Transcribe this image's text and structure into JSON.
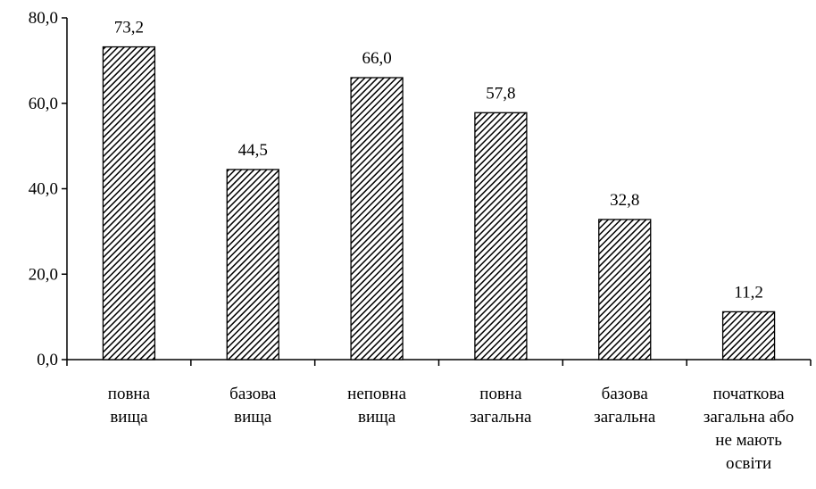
{
  "chart_data": {
    "type": "bar",
    "title": "",
    "xlabel": "",
    "ylabel": "",
    "ylim": [
      0,
      80
    ],
    "yticks": [
      "0,0",
      "20,0",
      "40,0",
      "60,0",
      "80,0"
    ],
    "grid": false,
    "legend": "none",
    "categories": [
      [
        "повна",
        "вища"
      ],
      [
        "базова",
        "вища"
      ],
      [
        "неповна",
        "вища"
      ],
      [
        "повна",
        "загальна"
      ],
      [
        "базова",
        "загальна"
      ],
      [
        "початкова",
        "загальна або",
        "не мають",
        "освіти"
      ]
    ],
    "values": [
      73.2,
      44.5,
      66.0,
      57.8,
      32.8,
      11.2
    ],
    "value_labels": [
      "73,2",
      "44,5",
      "66,0",
      "57,8",
      "32,8",
      "11,2"
    ],
    "bar_fill": "hatched diagonal black-and-white"
  }
}
